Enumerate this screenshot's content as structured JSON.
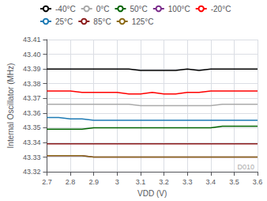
{
  "chart_data": {
    "type": "line",
    "xlabel": "VDD (V)",
    "ylabel": "Internal Oscillator (MHz)",
    "xlim": [
      2.7,
      3.6
    ],
    "ylim": [
      43.32,
      43.41
    ],
    "xticks": [
      2.7,
      2.8,
      2.9,
      3.0,
      3.1,
      3.2,
      3.3,
      3.4,
      3.5,
      3.6
    ],
    "yticks": [
      43.32,
      43.33,
      43.34,
      43.35,
      43.36,
      43.37,
      43.38,
      43.39,
      {
        "value": 43.4,
        "label": "43.40"
      },
      43.41
    ],
    "grid": true,
    "legend": "upper left",
    "annotations": [
      "D010"
    ],
    "x": [
      2.7,
      2.75,
      2.8,
      2.85,
      2.9,
      2.95,
      3.0,
      3.05,
      3.1,
      3.15,
      3.2,
      3.25,
      3.3,
      3.35,
      3.4,
      3.45,
      3.5,
      3.55,
      3.6
    ],
    "series": [
      {
        "name": "-40°C",
        "color": "#000000",
        "values": [
          43.39,
          43.39,
          43.39,
          43.39,
          43.39,
          43.39,
          43.39,
          43.39,
          43.389,
          43.389,
          43.389,
          43.389,
          43.39,
          43.389,
          43.39,
          43.39,
          43.39,
          43.39,
          43.39
        ]
      },
      {
        "name": "0°C",
        "color": "#aaaaaa",
        "values": [
          43.366,
          43.366,
          43.366,
          43.366,
          43.366,
          43.366,
          43.366,
          43.366,
          43.365,
          43.365,
          43.365,
          43.365,
          43.365,
          43.365,
          43.365,
          43.366,
          43.366,
          43.366,
          43.366
        ]
      },
      {
        "name": "50°C",
        "color": "#006400",
        "values": [
          43.349,
          43.349,
          43.349,
          43.349,
          43.35,
          43.35,
          43.35,
          43.35,
          43.35,
          43.35,
          43.35,
          43.35,
          43.35,
          43.35,
          43.35,
          43.351,
          43.351,
          43.351,
          43.351
        ]
      },
      {
        "name": "100°C",
        "color": "#7b2d8b",
        "values": [
          43.331,
          43.331,
          43.331,
          43.331,
          43.33,
          43.33,
          43.33,
          43.33,
          43.33,
          43.33,
          43.33,
          43.33,
          43.33,
          43.33,
          43.33,
          43.33,
          43.33,
          43.33,
          43.33
        ]
      },
      {
        "name": "-20°C",
        "color": "#ff0000",
        "values": [
          43.375,
          43.375,
          43.375,
          43.374,
          43.374,
          43.374,
          43.374,
          43.373,
          43.373,
          43.374,
          43.373,
          43.373,
          43.374,
          43.374,
          43.375,
          43.375,
          43.375,
          43.375,
          43.375
        ]
      },
      {
        "name": "25°C",
        "color": "#1e7bb5",
        "values": [
          43.357,
          43.357,
          43.356,
          43.356,
          43.355,
          43.355,
          43.355,
          43.355,
          43.355,
          43.355,
          43.355,
          43.355,
          43.355,
          43.355,
          43.355,
          43.355,
          43.355,
          43.355,
          43.355
        ]
      },
      {
        "name": "85°C",
        "color": "#8b1a1a",
        "values": [
          43.339,
          43.339,
          43.339,
          43.339,
          43.339,
          43.339,
          43.339,
          43.339,
          43.339,
          43.339,
          43.339,
          43.339,
          43.339,
          43.339,
          43.339,
          43.339,
          43.339,
          43.339,
          43.339
        ]
      },
      {
        "name": "125°C",
        "color": "#8b6914",
        "values": [
          43.331,
          43.331,
          43.331,
          43.331,
          43.33,
          43.33,
          43.33,
          43.33,
          43.33,
          43.33,
          43.33,
          43.33,
          43.33,
          43.33,
          43.33,
          43.33,
          43.33,
          43.33,
          43.33
        ]
      }
    ]
  }
}
